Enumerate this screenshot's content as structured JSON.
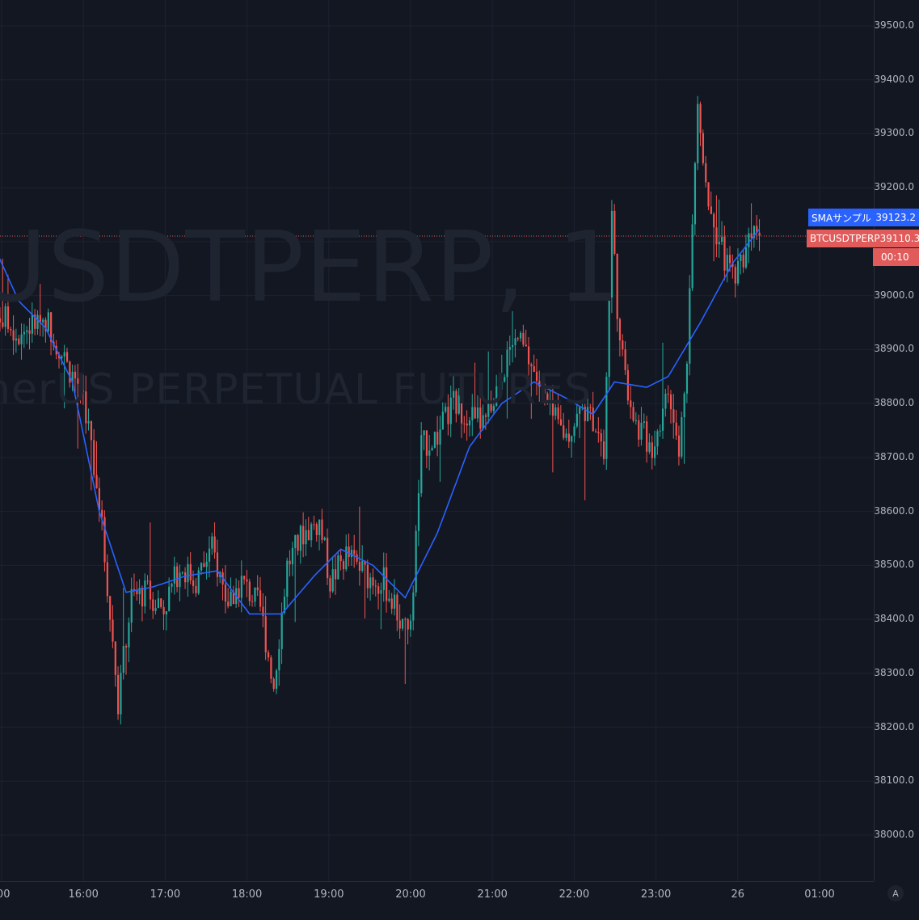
{
  "watermark": {
    "symbol": "USDTPERP, 1",
    "description": "nerUS PERPETUAL FUTURES"
  },
  "price_tags": {
    "sma_name": "SMAサンプル",
    "sma_value": "39123.2",
    "sma_color": "#2962ff",
    "symbol_name": "BTCUSDTPERP",
    "symbol_value": "39110.3",
    "symbol_color": "#e15b5b",
    "countdown": "00:10"
  },
  "axis_controls": {
    "auto_label": "A"
  },
  "chart_data": {
    "type": "candlestick",
    "title": "",
    "y_ticks": [
      "39500.0",
      "39400.0",
      "39300.0",
      "39200.0",
      "39100.0",
      "39000.0",
      "38900.0",
      "38800.0",
      "38700.0",
      "38600.0",
      "38500.0",
      "38400.0",
      "38300.0",
      "38200.0",
      "38100.0",
      "38000.0"
    ],
    "ylim": [
      37970,
      39520
    ],
    "x_ticks": [
      ":00",
      "16:00",
      "17:00",
      "18:00",
      "19:00",
      "20:00",
      "21:00",
      "22:00",
      "23:00",
      "26",
      "01:00"
    ],
    "colors": {
      "up": "#26a69a",
      "down": "#ef5350",
      "sma": "#2962ff",
      "grid": "#1e2230",
      "current_price_line": "#e15b5b"
    },
    "last_price": 39110.3,
    "close_keypoints": [
      {
        "time": 0,
        "close": 38980
      },
      {
        "time": 10,
        "close": 38930
      },
      {
        "time": 20,
        "close": 38960
      },
      {
        "time": 28,
        "close": 38870
      },
      {
        "time": 34,
        "close": 38820
      },
      {
        "time": 40,
        "close": 38620
      },
      {
        "time": 47,
        "close": 38250
      },
      {
        "time": 52,
        "close": 38440
      },
      {
        "time": 58,
        "close": 38450
      },
      {
        "time": 64,
        "close": 38420
      },
      {
        "time": 70,
        "close": 38500
      },
      {
        "time": 76,
        "close": 38470
      },
      {
        "time": 82,
        "close": 38530
      },
      {
        "time": 88,
        "close": 38430
      },
      {
        "time": 93,
        "close": 38470
      },
      {
        "time": 100,
        "close": 38420
      },
      {
        "time": 105,
        "close": 38280
      },
      {
        "time": 110,
        "close": 38500
      },
      {
        "time": 116,
        "close": 38560
      },
      {
        "time": 122,
        "close": 38580
      },
      {
        "time": 126,
        "close": 38470
      },
      {
        "time": 132,
        "close": 38520
      },
      {
        "time": 140,
        "close": 38480
      },
      {
        "time": 146,
        "close": 38470
      },
      {
        "time": 152,
        "close": 38400
      },
      {
        "time": 156,
        "close": 38380
      },
      {
        "time": 160,
        "close": 38720
      },
      {
        "time": 166,
        "close": 38740
      },
      {
        "time": 172,
        "close": 38800
      },
      {
        "time": 178,
        "close": 38780
      },
      {
        "time": 184,
        "close": 38760
      },
      {
        "time": 190,
        "close": 38860
      },
      {
        "time": 196,
        "close": 38920
      },
      {
        "time": 202,
        "close": 38860
      },
      {
        "time": 208,
        "close": 38780
      },
      {
        "time": 214,
        "close": 38740
      },
      {
        "time": 220,
        "close": 38790
      },
      {
        "time": 226,
        "close": 38760
      },
      {
        "time": 228,
        "close": 38700
      },
      {
        "time": 231,
        "close": 39150
      },
      {
        "time": 234,
        "close": 38900
      },
      {
        "time": 240,
        "close": 38760
      },
      {
        "time": 246,
        "close": 38720
      },
      {
        "time": 252,
        "close": 38820
      },
      {
        "time": 256,
        "close": 38700
      },
      {
        "time": 259,
        "close": 38900
      },
      {
        "time": 263,
        "close": 39350
      },
      {
        "time": 267,
        "close": 39180
      },
      {
        "time": 271,
        "close": 39100
      },
      {
        "time": 275,
        "close": 39040
      },
      {
        "time": 279,
        "close": 39060
      },
      {
        "time": 283,
        "close": 39130
      },
      {
        "time": 286,
        "close": 39110.3
      }
    ],
    "sma_keypoints": [
      {
        "time": 0,
        "value": 39100
      },
      {
        "time": 10,
        "value": 38990
      },
      {
        "time": 20,
        "value": 38940
      },
      {
        "time": 30,
        "value": 38840
      },
      {
        "time": 40,
        "value": 38600
      },
      {
        "time": 50,
        "value": 38450
      },
      {
        "time": 60,
        "value": 38460
      },
      {
        "time": 72,
        "value": 38480
      },
      {
        "time": 84,
        "value": 38490
      },
      {
        "time": 96,
        "value": 38410
      },
      {
        "time": 108,
        "value": 38410
      },
      {
        "time": 120,
        "value": 38480
      },
      {
        "time": 130,
        "value": 38530
      },
      {
        "time": 142,
        "value": 38500
      },
      {
        "time": 154,
        "value": 38440
      },
      {
        "time": 166,
        "value": 38560
      },
      {
        "time": 178,
        "value": 38720
      },
      {
        "time": 190,
        "value": 38800
      },
      {
        "time": 202,
        "value": 38840
      },
      {
        "time": 214,
        "value": 38810
      },
      {
        "time": 224,
        "value": 38780
      },
      {
        "time": 232,
        "value": 38840
      },
      {
        "time": 244,
        "value": 38830
      },
      {
        "time": 252,
        "value": 38850
      },
      {
        "time": 264,
        "value": 38950
      },
      {
        "time": 276,
        "value": 39060
      },
      {
        "time": 286,
        "value": 39123.2
      }
    ],
    "grid": true
  }
}
